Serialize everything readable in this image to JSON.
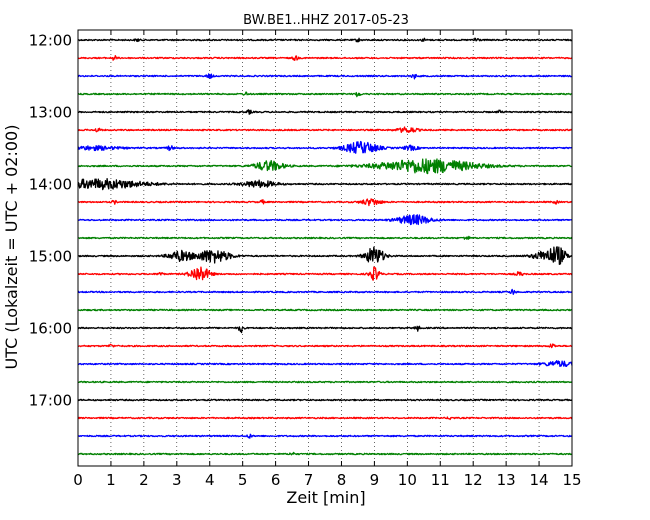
{
  "chart_data": {
    "type": "line",
    "title": "BW.BE1..HHZ 2017-05-23",
    "xlabel": "Zeit  [min]",
    "ylabel": "UTC (Lokalzeit = UTC + 02:00)",
    "xlim": [
      0,
      15
    ],
    "x_ticks": [
      0,
      1,
      2,
      3,
      4,
      5,
      6,
      7,
      8,
      9,
      10,
      11,
      12,
      13,
      14,
      15
    ],
    "y_tick_labels": [
      "12:00",
      "13:00",
      "14:00",
      "15:00",
      "16:00",
      "17:00"
    ],
    "grid": "vertical dotted",
    "color_cycle": [
      "#000000",
      "#ff0000",
      "#0000ff",
      "#008000"
    ],
    "traces": [
      {
        "start": "12:00",
        "color": "#000000",
        "events": [
          {
            "t": 1.8,
            "a": 0.25,
            "d": 0.05
          },
          {
            "t": 8.5,
            "a": 0.3,
            "d": 0.05
          },
          {
            "t": 10.5,
            "a": 0.25,
            "d": 0.05
          },
          {
            "t": 12.1,
            "a": 0.6,
            "d": 0.05
          }
        ]
      },
      {
        "start": "12:15",
        "color": "#ff0000",
        "events": [
          {
            "t": 1.1,
            "a": 0.45,
            "d": 0.05
          },
          {
            "t": 6.6,
            "a": 0.5,
            "d": 0.05
          }
        ]
      },
      {
        "start": "12:30",
        "color": "#0000ff",
        "events": [
          {
            "t": 4.0,
            "a": 0.4,
            "d": 0.06
          },
          {
            "t": 10.2,
            "a": 0.45,
            "d": 0.05
          }
        ]
      },
      {
        "start": "12:45",
        "color": "#008000",
        "events": [
          {
            "t": 5.1,
            "a": 0.3,
            "d": 0.05
          },
          {
            "t": 8.5,
            "a": 0.5,
            "d": 0.05
          }
        ]
      },
      {
        "start": "13:00",
        "color": "#000000",
        "events": [
          {
            "t": 5.2,
            "a": 0.35,
            "d": 0.05
          },
          {
            "t": 12.8,
            "a": 0.25,
            "d": 0.05
          }
        ]
      },
      {
        "start": "13:15",
        "color": "#ff0000",
        "events": [
          {
            "t": 0.6,
            "a": 0.45,
            "d": 0.05
          },
          {
            "t": 10.0,
            "a": 0.5,
            "d": 0.2
          }
        ]
      },
      {
        "start": "13:30",
        "color": "#0000ff",
        "events": [
          {
            "t": 0.5,
            "a": 0.35,
            "d": 0.5
          },
          {
            "t": 2.8,
            "a": 0.45,
            "d": 0.06
          },
          {
            "t": 8.6,
            "a": 1.1,
            "d": 0.35
          },
          {
            "t": 10.1,
            "a": 0.4,
            "d": 0.15
          }
        ]
      },
      {
        "start": "13:45",
        "color": "#008000",
        "events": [
          {
            "t": 5.8,
            "a": 0.9,
            "d": 0.3
          },
          {
            "t": 10.6,
            "a": 1.3,
            "d": 1.0
          }
        ]
      },
      {
        "start": "14:00",
        "color": "#000000",
        "events": [
          {
            "t": 0.7,
            "a": 0.9,
            "d": 0.9
          },
          {
            "t": 5.5,
            "a": 0.6,
            "d": 0.35
          }
        ]
      },
      {
        "start": "14:15",
        "color": "#ff0000",
        "events": [
          {
            "t": 1.1,
            "a": 0.3,
            "d": 0.05
          },
          {
            "t": 5.6,
            "a": 0.3,
            "d": 0.05
          },
          {
            "t": 8.9,
            "a": 0.6,
            "d": 0.2
          },
          {
            "t": 14.5,
            "a": 0.3,
            "d": 0.05
          }
        ]
      },
      {
        "start": "14:30",
        "color": "#0000ff",
        "events": [
          {
            "t": 10.2,
            "a": 0.9,
            "d": 0.35
          }
        ]
      },
      {
        "start": "14:45",
        "color": "#008000",
        "events": [
          {
            "t": 11.8,
            "a": 0.45,
            "d": 0.05
          }
        ]
      },
      {
        "start": "15:00",
        "color": "#000000",
        "events": [
          {
            "t": 3.1,
            "a": 0.9,
            "d": 0.25
          },
          {
            "t": 4.1,
            "a": 1.2,
            "d": 0.35
          },
          {
            "t": 9.0,
            "a": 1.6,
            "d": 0.2
          },
          {
            "t": 14.3,
            "a": 1.1,
            "d": 0.3
          },
          {
            "t": 14.6,
            "a": 1.0,
            "d": 0.15
          }
        ]
      },
      {
        "start": "15:15",
        "color": "#ff0000",
        "events": [
          {
            "t": 2.5,
            "a": 0.35,
            "d": 0.05
          },
          {
            "t": 3.7,
            "a": 1.4,
            "d": 0.2
          },
          {
            "t": 9.0,
            "a": 1.2,
            "d": 0.1
          },
          {
            "t": 13.4,
            "a": 0.35,
            "d": 0.08
          }
        ]
      },
      {
        "start": "15:30",
        "color": "#0000ff",
        "events": [
          {
            "t": 13.2,
            "a": 0.5,
            "d": 0.05
          }
        ]
      },
      {
        "start": "15:45",
        "color": "#008000",
        "events": []
      },
      {
        "start": "16:00",
        "color": "#000000",
        "events": [
          {
            "t": 4.95,
            "a": 0.8,
            "d": 0.05
          },
          {
            "t": 10.3,
            "a": 0.5,
            "d": 0.05
          }
        ]
      },
      {
        "start": "16:15",
        "color": "#ff0000",
        "events": [
          {
            "t": 1.0,
            "a": 0.3,
            "d": 0.05
          },
          {
            "t": 14.4,
            "a": 0.45,
            "d": 0.05
          }
        ]
      },
      {
        "start": "16:30",
        "color": "#0000ff",
        "events": [
          {
            "t": 14.6,
            "a": 0.5,
            "d": 0.3
          }
        ]
      },
      {
        "start": "16:45",
        "color": "#008000",
        "events": []
      },
      {
        "start": "17:00",
        "color": "#000000",
        "events": []
      },
      {
        "start": "17:15",
        "color": "#ff0000",
        "events": [
          {
            "t": 11.3,
            "a": 0.25,
            "d": 0.05
          }
        ]
      },
      {
        "start": "17:30",
        "color": "#0000ff",
        "events": [
          {
            "t": 5.2,
            "a": 0.35,
            "d": 0.05
          }
        ]
      },
      {
        "start": "17:45",
        "color": "#008000",
        "events": [
          {
            "t": 6.5,
            "a": 0.3,
            "d": 0.05
          }
        ]
      }
    ]
  }
}
